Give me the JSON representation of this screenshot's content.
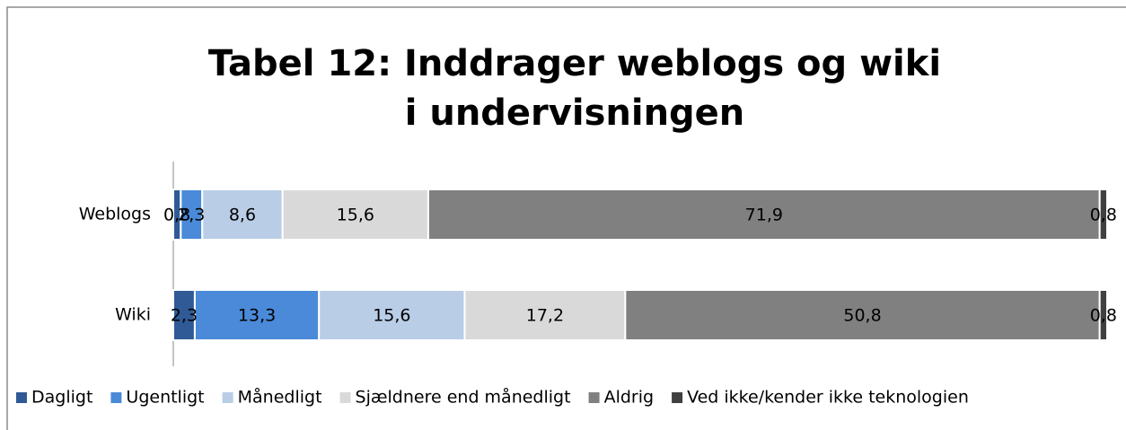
{
  "chart_data": {
    "type": "stacked-bar-horizontal",
    "title": [
      "Tabel 12: Inddrager weblogs og wiki",
      "i undervisningen"
    ],
    "categories": [
      "Weblogs",
      "Wiki"
    ],
    "xlim": [
      0,
      100
    ],
    "series": [
      {
        "name": "Dagligt",
        "color": "#2f5a96",
        "values": [
          0.8,
          2.3
        ],
        "value_labels": [
          "0,8",
          "2,3"
        ]
      },
      {
        "name": "Ugentligt",
        "color": "#4a8ad9",
        "values": [
          2.3,
          13.3
        ],
        "value_labels": [
          "2,3",
          "13,3"
        ]
      },
      {
        "name": "Månedligt",
        "color": "#b9cde6",
        "values": [
          8.6,
          15.6
        ],
        "value_labels": [
          "8,6",
          "15,6"
        ]
      },
      {
        "name": "Sjældnere end månedligt",
        "color": "#d9d9d9",
        "values": [
          15.6,
          17.2
        ],
        "value_labels": [
          "15,6",
          "17,2"
        ]
      },
      {
        "name": "Aldrig",
        "color": "#808080",
        "values": [
          71.9,
          50.8
        ],
        "value_labels": [
          "71,9",
          "50,8"
        ]
      },
      {
        "name": "Ved ikke/kender ikke teknologien",
        "color": "#404040",
        "values": [
          0.8,
          0.8
        ],
        "value_labels": [
          "0,8",
          "0,8"
        ]
      }
    ],
    "legend": "bottom"
  }
}
